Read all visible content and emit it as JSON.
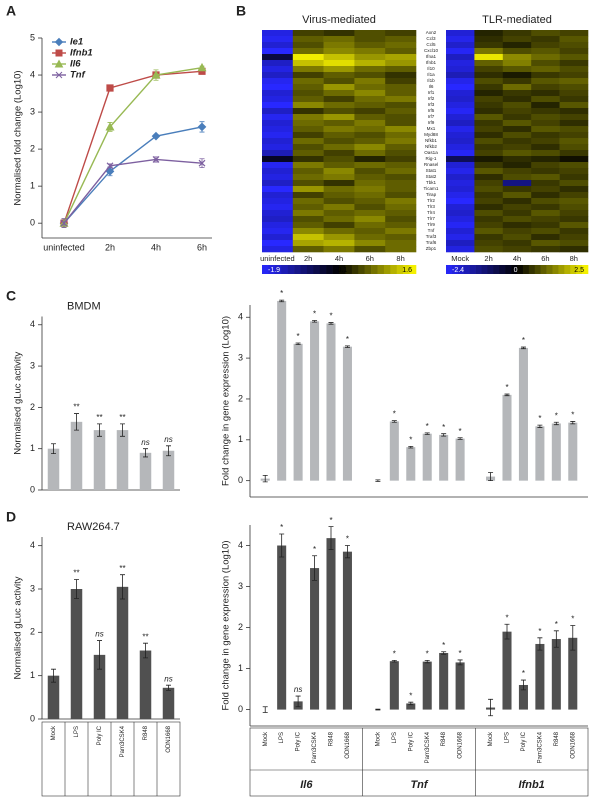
{
  "panel_labels": [
    "A",
    "B",
    "C",
    "D"
  ],
  "chart_data": [
    {
      "type": "line",
      "ylabel": "Normalised fold change (Log10)",
      "categories": [
        "uninfected",
        "2h",
        "4h",
        "6h"
      ],
      "ylim": [
        -0.4,
        5
      ],
      "yticks": [
        0,
        1,
        2,
        3,
        4,
        5
      ],
      "series": [
        {
          "name": "Ie1",
          "color": "#4a7ebb",
          "marker": "diamond",
          "values": [
            0,
            1.4,
            2.35,
            2.6
          ],
          "errors": [
            0.12,
            0.12,
            0.04,
            0.14
          ]
        },
        {
          "name": "Ifnb1",
          "color": "#be4b48",
          "marker": "square",
          "values": [
            0,
            3.65,
            4.0,
            4.1
          ],
          "errors": [
            0.12,
            0.06,
            0.08,
            0.05
          ]
        },
        {
          "name": "Il6",
          "color": "#98b954",
          "marker": "triangle",
          "values": [
            0,
            2.6,
            4.0,
            4.2
          ],
          "errors": [
            0.12,
            0.12,
            0.14,
            0.04
          ]
        },
        {
          "name": "Tnf",
          "color": "#7d60a0",
          "marker": "cross",
          "values": [
            0,
            1.55,
            1.72,
            1.62
          ],
          "errors": [
            0.12,
            0.05,
            0.07,
            0.12
          ]
        }
      ]
    },
    {
      "type": "heatmap",
      "title": "Virus-mediated",
      "columns": [
        "uninfected",
        "2h",
        "4h",
        "6h",
        "8h"
      ],
      "rows": [
        "Axn2",
        "Ccl3",
        "Ccl5",
        "Cxcl10",
        "Ifna1",
        "Ifnb1",
        "Il10",
        "Il1a",
        "Il1b",
        "Il6",
        "Irf1",
        "Irf2",
        "Irf3",
        "Irf5",
        "Irf7",
        "Irf9",
        "Mx1",
        "Myd88",
        "Nfkb1",
        "Nfkb2",
        "Oas1a",
        "Rig-1",
        "Rnasel",
        "Stat1",
        "Stat2",
        "Tbk1",
        "Ticam1",
        "Tirap",
        "Tlr2",
        "Tlr3",
        "Tlr4",
        "Tlr7",
        "Tlr9",
        "Tnf",
        "Traf3",
        "Traf6",
        "Zbp1"
      ],
      "values": [
        [
          -1.7,
          0.3,
          0.2,
          0.4,
          0.3
        ],
        [
          -1.8,
          0.5,
          0.6,
          0.4,
          0.5
        ],
        [
          -1.6,
          0.4,
          0.7,
          0.5,
          0.6
        ],
        [
          -1.9,
          0.6,
          0.8,
          0.7,
          0.5
        ],
        [
          -0.6,
          1.5,
          1.2,
          0.9,
          1.0
        ],
        [
          -1.5,
          1.2,
          1.4,
          1.1,
          0.9
        ],
        [
          -1.7,
          0.7,
          0.9,
          0.6,
          0.5
        ],
        [
          -1.5,
          0.3,
          0.5,
          0.4,
          0.2
        ],
        [
          -1.8,
          0.6,
          0.4,
          0.7,
          0.3
        ],
        [
          -1.9,
          0.5,
          0.9,
          0.6,
          0.5
        ],
        [
          -1.6,
          0.4,
          0.6,
          0.8,
          0.5
        ],
        [
          -1.7,
          0.5,
          0.3,
          0.6,
          0.7
        ],
        [
          -1.9,
          0.8,
          0.6,
          0.5,
          0.4
        ],
        [
          -1.5,
          0.2,
          0.4,
          0.3,
          0.5
        ],
        [
          -1.8,
          0.7,
          0.9,
          0.5,
          0.4
        ],
        [
          -1.6,
          0.6,
          0.5,
          0.7,
          0.4
        ],
        [
          -1.7,
          0.5,
          0.7,
          0.6,
          0.8
        ],
        [
          -1.8,
          0.3,
          0.5,
          0.4,
          0.6
        ],
        [
          -1.6,
          0.6,
          0.4,
          0.5,
          0.7
        ],
        [
          -1.7,
          0.4,
          0.6,
          0.8,
          0.5
        ],
        [
          -1.4,
          0.5,
          0.3,
          0.6,
          0.4
        ],
        [
          -0.4,
          0.2,
          0.4,
          0.1,
          0.3
        ],
        [
          -1.8,
          0.7,
          0.5,
          0.6,
          0.5
        ],
        [
          -1.6,
          0.5,
          0.8,
          0.4,
          0.6
        ],
        [
          -1.7,
          0.6,
          0.7,
          0.5,
          0.4
        ],
        [
          -1.5,
          0.4,
          0.2,
          0.6,
          0.5
        ],
        [
          -1.9,
          0.9,
          0.6,
          0.7,
          0.5
        ],
        [
          -1.6,
          0.3,
          0.5,
          0.6,
          0.4
        ],
        [
          -1.7,
          0.6,
          0.4,
          0.5,
          0.7
        ],
        [
          -1.8,
          0.5,
          0.7,
          0.4,
          0.6
        ],
        [
          -1.6,
          0.7,
          0.5,
          0.6,
          0.5
        ],
        [
          -1.5,
          0.4,
          0.6,
          0.8,
          0.4
        ],
        [
          -1.7,
          0.5,
          0.3,
          0.6,
          0.5
        ],
        [
          -1.8,
          0.8,
          0.6,
          0.5,
          0.7
        ],
        [
          -1.6,
          1.2,
          0.9,
          0.6,
          0.5
        ],
        [
          -1.9,
          1.0,
          1.1,
          0.8,
          0.6
        ],
        [
          -1.7,
          0.5,
          0.7,
          0.4,
          0.6
        ]
      ],
      "clim": [
        -1.9,
        1.6
      ],
      "colorbar_ticks": [
        -1.9,
        -0.1,
        1.6
      ]
    },
    {
      "type": "heatmap",
      "title": "TLR-mediated",
      "columns": [
        "Mock",
        "2h",
        "4h",
        "6h",
        "8h"
      ],
      "values": [
        [
          -2.0,
          0.4,
          0.6,
          0.8,
          0.7
        ],
        [
          -2.2,
          0.5,
          0.7,
          0.6,
          0.9
        ],
        [
          -1.9,
          0.6,
          0.4,
          0.7,
          0.8
        ],
        [
          -2.3,
          1.2,
          0.8,
          0.9,
          0.7
        ],
        [
          -1.8,
          2.3,
          1.4,
          1.1,
          0.9
        ],
        [
          -2.1,
          1.0,
          1.3,
          0.8,
          0.6
        ],
        [
          -2.0,
          0.7,
          0.9,
          1.0,
          0.8
        ],
        [
          -1.7,
          0.5,
          0.3,
          0.6,
          0.7
        ],
        [
          -2.2,
          0.8,
          0.6,
          0.9,
          1.0
        ],
        [
          -2.4,
          0.6,
          1.1,
          0.7,
          0.8
        ],
        [
          -2.0,
          0.4,
          0.6,
          0.5,
          0.7
        ],
        [
          -1.9,
          0.7,
          0.5,
          0.8,
          0.6
        ],
        [
          -2.1,
          0.6,
          0.8,
          0.4,
          0.9
        ],
        [
          -2.3,
          0.5,
          0.7,
          0.6,
          0.5
        ],
        [
          -2.0,
          0.9,
          0.6,
          0.8,
          0.7
        ],
        [
          -1.8,
          0.6,
          0.9,
          0.7,
          0.5
        ],
        [
          -2.2,
          0.7,
          0.5,
          0.9,
          0.8
        ],
        [
          -2.0,
          0.5,
          0.8,
          0.6,
          0.7
        ],
        [
          -1.9,
          0.8,
          0.6,
          0.7,
          0.9
        ],
        [
          -2.1,
          0.6,
          0.7,
          0.5,
          0.8
        ],
        [
          -2.3,
          0.7,
          0.9,
          0.8,
          0.6
        ],
        [
          -0.8,
          0.3,
          0.5,
          0.4,
          0.2
        ],
        [
          -2.0,
          0.6,
          0.4,
          0.7,
          0.8
        ],
        [
          -2.2,
          0.9,
          0.7,
          0.6,
          0.7
        ],
        [
          -1.9,
          0.5,
          0.8,
          0.9,
          0.6
        ],
        [
          -2.1,
          0.7,
          -1.2,
          0.6,
          0.8
        ],
        [
          -2.0,
          0.8,
          0.6,
          0.7,
          0.5
        ],
        [
          -2.2,
          0.6,
          0.9,
          0.5,
          0.7
        ],
        [
          -2.4,
          0.7,
          0.5,
          0.8,
          0.9
        ],
        [
          -2.0,
          0.5,
          0.7,
          0.6,
          0.8
        ],
        [
          -1.9,
          0.8,
          0.6,
          0.9,
          0.7
        ],
        [
          -2.1,
          0.6,
          0.8,
          0.7,
          0.6
        ],
        [
          -2.3,
          0.7,
          0.5,
          0.6,
          0.9
        ],
        [
          -2.0,
          0.9,
          0.7,
          0.8,
          0.6
        ],
        [
          -2.2,
          0.6,
          0.8,
          0.5,
          0.7
        ],
        [
          -1.8,
          0.7,
          0.6,
          0.9,
          0.8
        ],
        [
          -2.1,
          0.8,
          0.7,
          0.6,
          0.5
        ]
      ],
      "clim": [
        -2.4,
        2.5
      ],
      "colorbar_ticks": [
        -2.4,
        0,
        2.5
      ]
    },
    {
      "type": "bar",
      "title": "BMDM",
      "ylabel": "Normalised gLuc activity",
      "color": "#b5b7ba",
      "values": [
        1.0,
        1.65,
        1.45,
        1.45,
        0.9,
        0.95
      ],
      "errors": [
        0.12,
        0.2,
        0.15,
        0.15,
        0.1,
        0.12
      ],
      "annotations": [
        null,
        "**",
        "**",
        "**",
        "ns",
        "ns"
      ],
      "ylim": [
        0,
        4.2
      ],
      "yticks": [
        0,
        1,
        2,
        3,
        4
      ]
    },
    {
      "type": "grouped_bar",
      "ylabel": "Fold change in gene expression (Log10)",
      "color": "#b5b7ba",
      "groups": [
        {
          "name": "Il6",
          "values": [
            0.05,
            4.4,
            3.35,
            3.9,
            3.85,
            3.28
          ],
          "errors": [
            0.08,
            0.02,
            0.02,
            0.02,
            0.02,
            0.02
          ],
          "annotations": [
            null,
            "*",
            "*",
            "*",
            "*",
            "*"
          ]
        },
        {
          "name": "Tnf",
          "values": [
            0,
            1.45,
            0.82,
            1.15,
            1.12,
            1.03
          ],
          "errors": [
            0.02,
            0.02,
            0.02,
            0.02,
            0.03,
            0.02
          ],
          "annotations": [
            null,
            "*",
            "*",
            "*",
            "*",
            "*"
          ]
        },
        {
          "name": "Ifnb1",
          "values": [
            0.1,
            2.1,
            3.25,
            1.33,
            1.4,
            1.42
          ],
          "errors": [
            0.1,
            0.02,
            0.02,
            0.03,
            0.03,
            0.03
          ],
          "annotations": [
            null,
            "*",
            "*",
            "*",
            "*",
            "*"
          ]
        }
      ],
      "ylim": [
        -0.4,
        4.3
      ],
      "yticks": [
        0,
        1,
        2,
        3,
        4
      ]
    },
    {
      "type": "bar",
      "title": "RAW264.7",
      "ylabel": "Normalised gLuc activity",
      "color": "#505050",
      "categories": [
        "Mock",
        "LPS",
        "Poly IC",
        "Pam3CSK4",
        "R848",
        "ODN1668"
      ],
      "values": [
        1.0,
        3.0,
        1.48,
        3.05,
        1.58,
        0.72
      ],
      "errors": [
        0.15,
        0.22,
        0.33,
        0.28,
        0.17,
        0.06
      ],
      "annotations": [
        null,
        "**",
        "ns",
        "**",
        "**",
        "ns"
      ],
      "ylim": [
        0,
        4.2
      ],
      "yticks": [
        0,
        1,
        2,
        3,
        4
      ]
    },
    {
      "type": "grouped_bar",
      "ylabel": "Fold change in gene expression (Log10)",
      "color": "#505050",
      "categories": [
        "Mock",
        "LPS",
        "Poly IC",
        "Pam3CSK4",
        "R848",
        "ODN1668"
      ],
      "groups": [
        {
          "name": "Il6",
          "values": [
            0,
            4.0,
            0.2,
            3.45,
            4.18,
            3.85
          ],
          "errors": [
            0.07,
            0.28,
            0.13,
            0.3,
            0.28,
            0.15
          ],
          "annotations": [
            null,
            "*",
            "ns",
            "*",
            "*",
            "*"
          ]
        },
        {
          "name": "Tnf",
          "values": [
            0,
            1.18,
            0.15,
            1.17,
            1.38,
            1.15
          ],
          "errors": [
            0.01,
            0.02,
            0.03,
            0.03,
            0.03,
            0.06
          ],
          "annotations": [
            null,
            "*",
            "*",
            "*",
            "*",
            "*"
          ]
        },
        {
          "name": "Ifnb1",
          "values": [
            0.05,
            1.9,
            0.6,
            1.6,
            1.72,
            1.75
          ],
          "errors": [
            0.2,
            0.18,
            0.12,
            0.15,
            0.2,
            0.3
          ],
          "annotations": [
            null,
            "*",
            "*",
            "*",
            "*",
            "*"
          ]
        }
      ],
      "ylim": [
        -0.4,
        4.5
      ],
      "yticks": [
        0,
        1,
        2,
        3,
        4
      ]
    }
  ]
}
